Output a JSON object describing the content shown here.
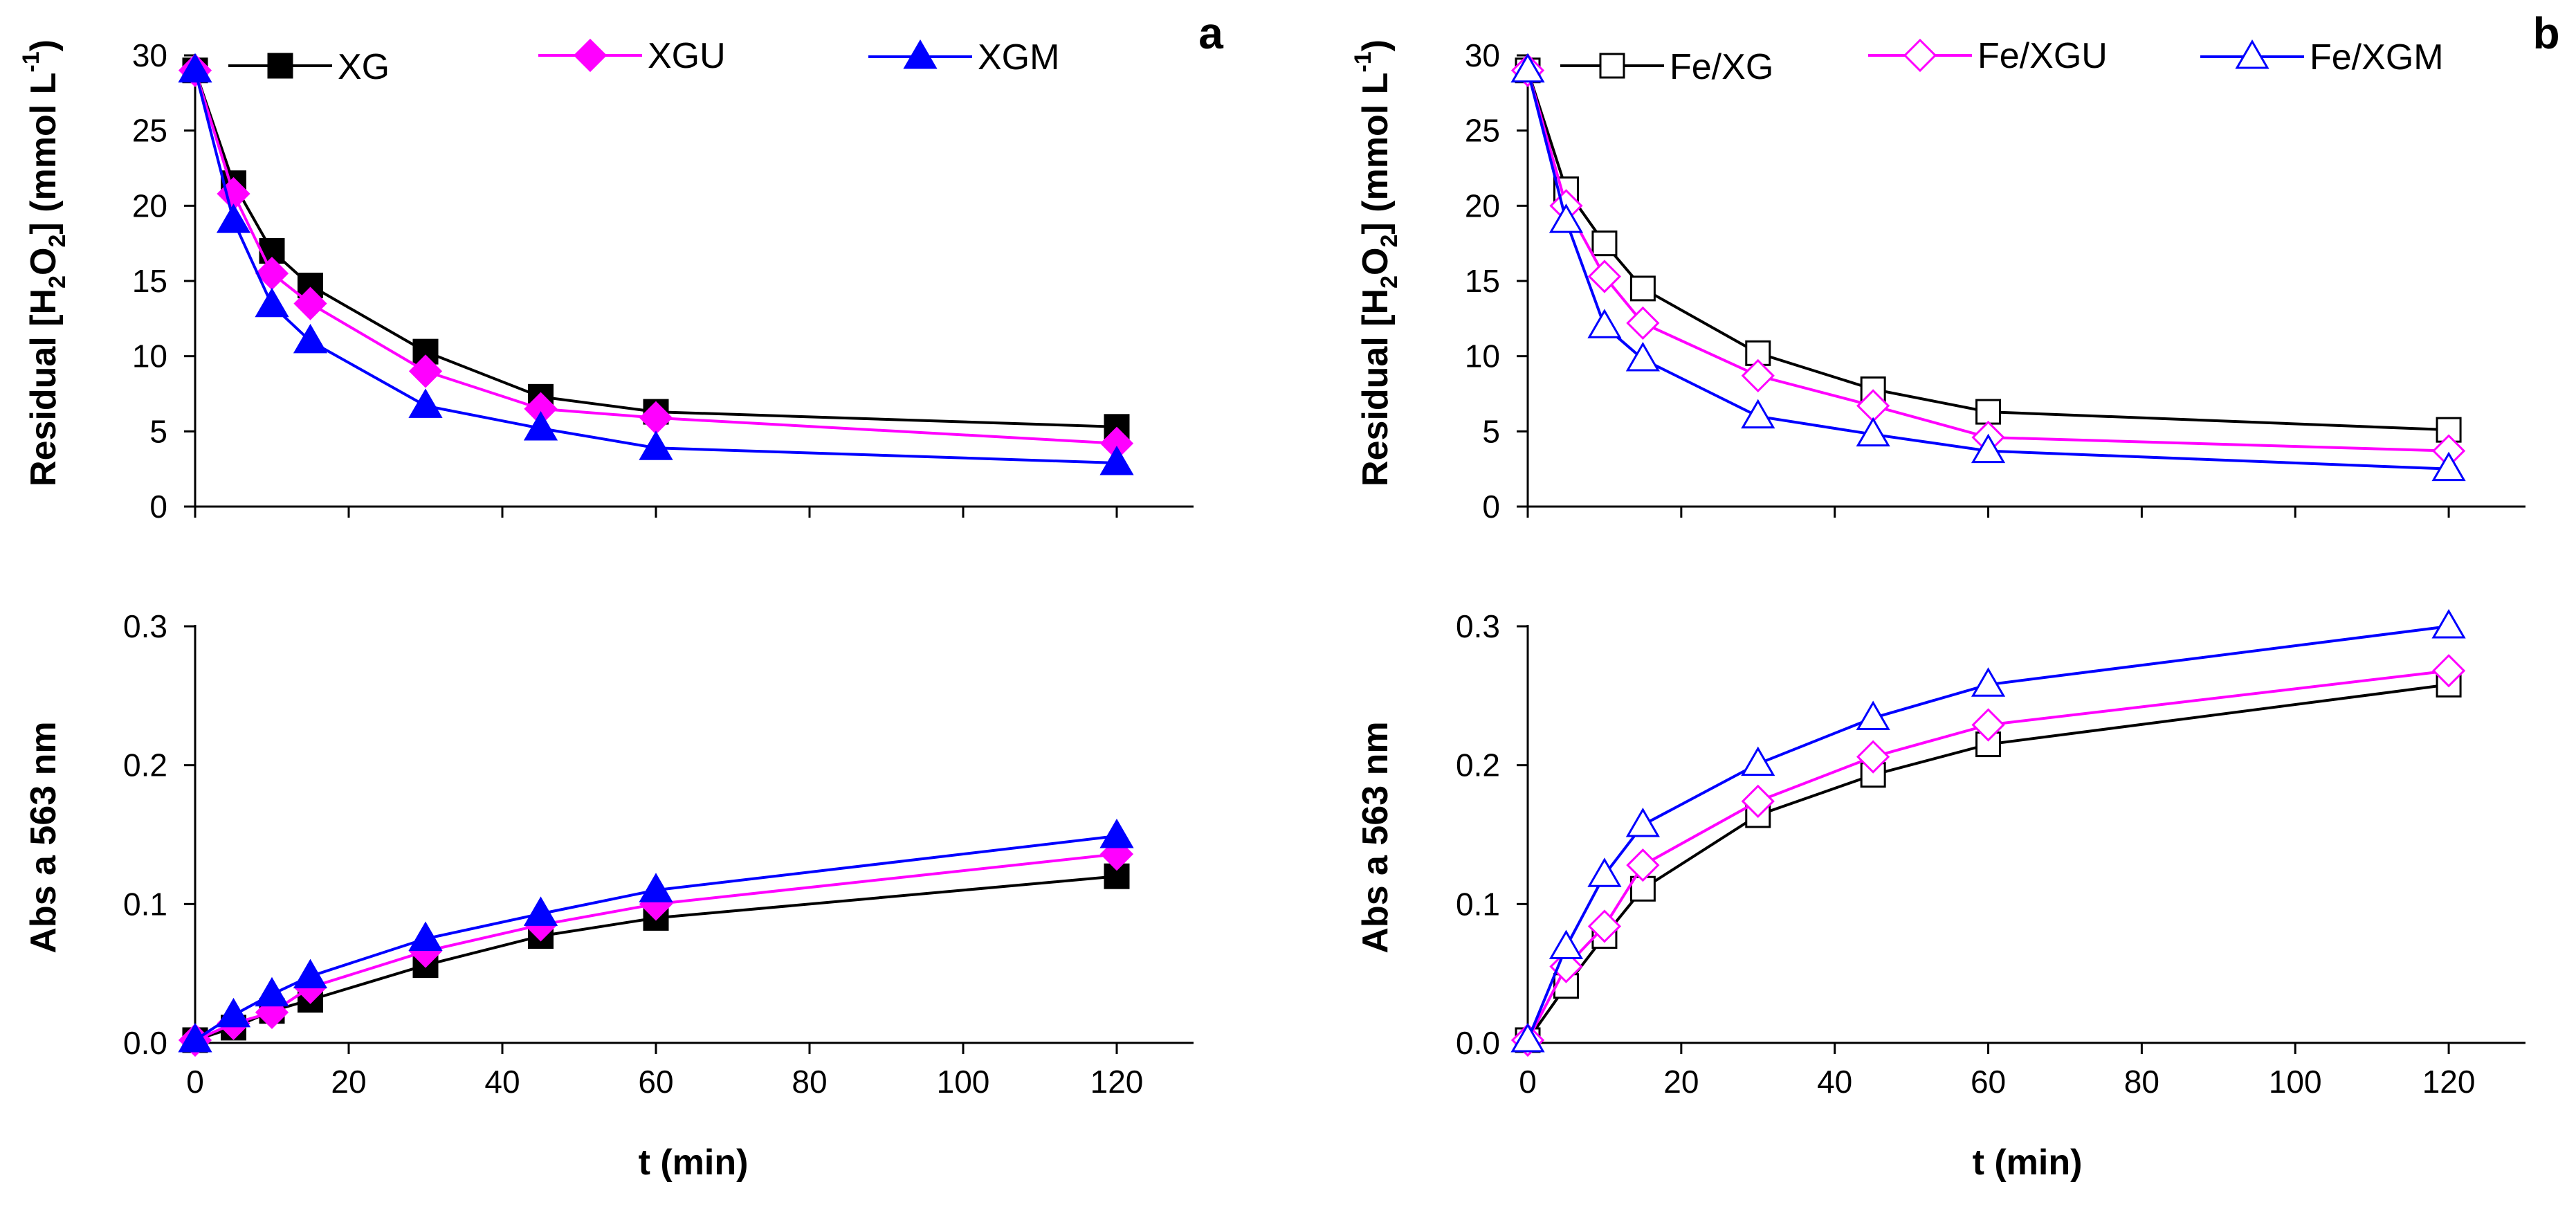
{
  "chart_data": [
    {
      "id": "a-top",
      "type": "line",
      "panel_label": "a",
      "ylabel": {
        "main": "Residual [H",
        "s1": "2",
        "mid": "O",
        "s2": "2",
        "end": "] (mmol L",
        "sup": "-1",
        "close": ")"
      },
      "xlim": [
        0,
        130
      ],
      "ylim": [
        0,
        30
      ],
      "yticks": [
        0,
        5,
        10,
        15,
        20,
        25,
        30
      ],
      "x": [
        0,
        5,
        10,
        15,
        30,
        45,
        60,
        120
      ],
      "series": [
        {
          "name": "XG",
          "color": "#000000",
          "marker": "square",
          "filled": true,
          "values": [
            29.0,
            21.5,
            17.0,
            14.7,
            10.3,
            7.3,
            6.3,
            5.3
          ]
        },
        {
          "name": "XGU",
          "color": "#ff00ff",
          "marker": "diamond",
          "filled": true,
          "values": [
            29.0,
            20.8,
            15.5,
            13.5,
            9.0,
            6.5,
            5.9,
            4.2
          ]
        },
        {
          "name": "XGM",
          "color": "#0000ff",
          "marker": "triangle",
          "filled": true,
          "values": [
            29.0,
            19.0,
            13.4,
            11.0,
            6.7,
            5.2,
            3.9,
            2.9
          ]
        }
      ]
    },
    {
      "id": "a-bottom",
      "type": "line",
      "xlabel": "t (min)",
      "ylabel_text": "Abs a 563 nm",
      "xlim": [
        0,
        130
      ],
      "xticks": [
        0,
        20,
        40,
        60,
        80,
        100,
        120
      ],
      "ylim": [
        0,
        0.3
      ],
      "yticks": [
        "0.0",
        "0.1",
        "0.2",
        "0.3"
      ],
      "x": [
        0,
        5,
        10,
        15,
        30,
        45,
        60,
        120
      ],
      "series": [
        {
          "name": "XG",
          "color": "#000000",
          "marker": "square",
          "filled": true,
          "values": [
            0.002,
            0.011,
            0.023,
            0.031,
            0.056,
            0.077,
            0.09,
            0.12
          ]
        },
        {
          "name": "XGU",
          "color": "#ff00ff",
          "marker": "diamond",
          "filled": true,
          "values": [
            0.002,
            0.014,
            0.022,
            0.04,
            0.066,
            0.085,
            0.1,
            0.136
          ]
        },
        {
          "name": "XGM",
          "color": "#0000ff",
          "marker": "triangle",
          "filled": true,
          "values": [
            0.002,
            0.02,
            0.035,
            0.048,
            0.075,
            0.093,
            0.11,
            0.149
          ]
        }
      ]
    },
    {
      "id": "b-top",
      "type": "line",
      "panel_label": "b",
      "ylabel": {
        "main": "Residual [H",
        "s1": "2",
        "mid": "O",
        "s2": "2",
        "end": "] (mmol L",
        "sup": "-1",
        "close": ")"
      },
      "xlim": [
        0,
        130
      ],
      "ylim": [
        0,
        30
      ],
      "yticks": [
        0,
        5,
        10,
        15,
        20,
        25,
        30
      ],
      "x": [
        0,
        5,
        10,
        15,
        30,
        45,
        60,
        120
      ],
      "series": [
        {
          "name": "Fe/XG",
          "color": "#000000",
          "marker": "square",
          "filled": false,
          "values": [
            29.0,
            21.1,
            17.5,
            14.5,
            10.2,
            7.8,
            6.3,
            5.1
          ]
        },
        {
          "name": "Fe/XGU",
          "color": "#ff00ff",
          "marker": "diamond",
          "filled": false,
          "values": [
            29.0,
            20.0,
            15.3,
            12.2,
            8.7,
            6.7,
            4.6,
            3.7
          ]
        },
        {
          "name": "Fe/XGM",
          "color": "#0000ff",
          "marker": "triangle",
          "filled": false,
          "values": [
            29.0,
            19.0,
            12.0,
            9.8,
            6.0,
            4.8,
            3.7,
            2.5
          ]
        }
      ]
    },
    {
      "id": "b-bottom",
      "type": "line",
      "xlabel": "t (min)",
      "ylabel_text": "Abs a 563 nm",
      "xlim": [
        0,
        130
      ],
      "xticks": [
        0,
        20,
        40,
        60,
        80,
        100,
        120
      ],
      "ylim": [
        0,
        0.3
      ],
      "yticks": [
        "0.0",
        "0.1",
        "0.2",
        "0.3"
      ],
      "x": [
        0,
        5,
        10,
        15,
        30,
        45,
        60,
        120
      ],
      "series": [
        {
          "name": "Fe/XG",
          "color": "#000000",
          "marker": "square",
          "filled": false,
          "values": [
            0.002,
            0.041,
            0.077,
            0.111,
            0.164,
            0.193,
            0.215,
            0.258
          ]
        },
        {
          "name": "Fe/XGU",
          "color": "#ff00ff",
          "marker": "diamond",
          "filled": false,
          "values": [
            0.002,
            0.055,
            0.084,
            0.128,
            0.174,
            0.206,
            0.229,
            0.268
          ]
        },
        {
          "name": "Fe/XGM",
          "color": "#0000ff",
          "marker": "triangle",
          "filled": false,
          "values": [
            0.002,
            0.069,
            0.121,
            0.157,
            0.201,
            0.234,
            0.258,
            0.3
          ]
        }
      ]
    }
  ]
}
